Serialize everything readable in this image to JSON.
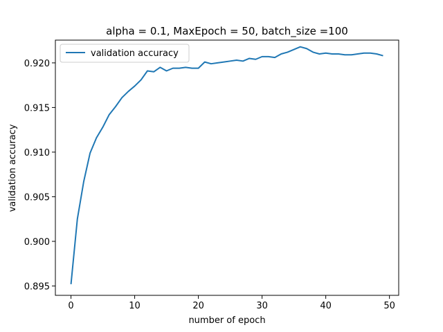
{
  "chart_data": {
    "type": "line",
    "title": "alpha = 0.1, MaxEpoch = 50, batch_size =100",
    "xlabel": "number of epoch",
    "ylabel": "validation accuracy",
    "xlim": [
      -2.45,
      51.45
    ],
    "ylim": [
      0.89395,
      0.92255
    ],
    "xticks": [
      0,
      10,
      20,
      30,
      40,
      50
    ],
    "xtick_labels": [
      "0",
      "10",
      "20",
      "30",
      "40",
      "50"
    ],
    "yticks": [
      0.895,
      0.9,
      0.905,
      0.91,
      0.915,
      0.92
    ],
    "ytick_labels": [
      "0.895",
      "0.900",
      "0.905",
      "0.910",
      "0.915",
      "0.920"
    ],
    "grid": false,
    "legend_position": "upper-left",
    "color": "#1f77b4",
    "series": [
      {
        "name": "validation accuracy",
        "x": [
          0,
          1,
          2,
          3,
          4,
          5,
          6,
          7,
          8,
          9,
          10,
          11,
          12,
          13,
          14,
          15,
          16,
          17,
          18,
          19,
          20,
          21,
          22,
          23,
          24,
          25,
          26,
          27,
          28,
          29,
          30,
          31,
          32,
          33,
          34,
          35,
          36,
          37,
          38,
          39,
          40,
          41,
          42,
          43,
          44,
          45,
          46,
          47,
          48,
          49
        ],
        "y": [
          0.8952,
          0.9025,
          0.9067,
          0.9099,
          0.9116,
          0.9128,
          0.9142,
          0.9151,
          0.9161,
          0.9168,
          0.9174,
          0.9181,
          0.9191,
          0.919,
          0.9195,
          0.9191,
          0.9194,
          0.9194,
          0.9195,
          0.9194,
          0.9194,
          0.9201,
          0.9199,
          0.92,
          0.9201,
          0.9202,
          0.9203,
          0.9202,
          0.9205,
          0.9204,
          0.9207,
          0.9207,
          0.9206,
          0.921,
          0.9212,
          0.9215,
          0.9218,
          0.9216,
          0.9212,
          0.921,
          0.9211,
          0.921,
          0.921,
          0.9209,
          0.9209,
          0.921,
          0.9211,
          0.9211,
          0.921,
          0.9208
        ]
      }
    ]
  }
}
